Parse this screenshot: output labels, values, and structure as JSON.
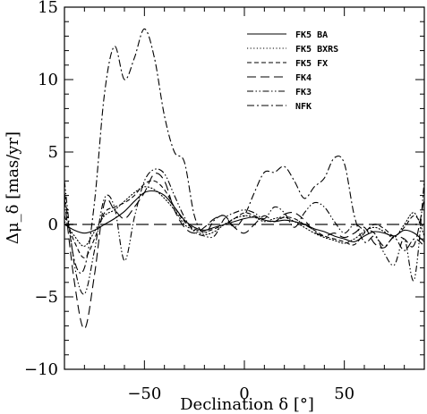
{
  "chart_data": {
    "type": "line",
    "title": "",
    "xlabel": "Declination δ [°]",
    "ylabel": "Δμ_δ [mas/yr]",
    "xlim": [
      -90,
      90
    ],
    "ylim": [
      -10,
      15
    ],
    "xticks": [
      -50,
      0,
      50
    ],
    "yticks": [
      -10,
      -5,
      0,
      5,
      10,
      15
    ],
    "xtick_labels": [
      "−50",
      "0",
      "50"
    ],
    "ytick_labels": [
      "−10",
      "−5",
      "0",
      "5",
      "10",
      "15"
    ],
    "grid": false,
    "legend_position": "top-right",
    "reference_line": {
      "y": 0,
      "style": "long-dash",
      "color": "#555555"
    },
    "series": [
      {
        "name": "FK5 BA",
        "dash": "solid",
        "x": [
          -90,
          -85,
          -80,
          -75,
          -70,
          -65,
          -60,
          -55,
          -50,
          -45,
          -40,
          -35,
          -30,
          -25,
          -20,
          -15,
          -10,
          -5,
          0,
          5,
          10,
          15,
          20,
          25,
          30,
          35,
          40,
          45,
          50,
          55,
          60,
          65,
          70,
          75,
          80,
          85,
          90
        ],
        "y": [
          0.0,
          -0.4,
          -0.6,
          -0.4,
          0.0,
          0.4,
          0.9,
          1.6,
          2.2,
          2.3,
          2.0,
          1.2,
          0.3,
          -0.2,
          -0.4,
          -0.2,
          0.0,
          0.2,
          0.4,
          0.5,
          0.3,
          0.2,
          0.3,
          0.2,
          0.0,
          -0.3,
          -0.5,
          -0.8,
          -1.0,
          -1.2,
          -0.8,
          -0.5,
          -0.6,
          -0.8,
          -0.4,
          -0.6,
          -1.2
        ]
      },
      {
        "name": "FK5 BXRS",
        "dash": "dotted",
        "x": [
          -90,
          -85,
          -80,
          -75,
          -70,
          -65,
          -60,
          -55,
          -50,
          -45,
          -40,
          -35,
          -30,
          -25,
          -20,
          -15,
          -10,
          -5,
          0,
          5,
          10,
          15,
          20,
          25,
          30,
          35,
          40,
          45,
          50,
          55,
          60,
          65,
          70,
          75,
          80,
          85,
          90
        ],
        "y": [
          0.2,
          -0.8,
          -1.5,
          -0.5,
          0.6,
          1.0,
          1.6,
          2.2,
          2.6,
          2.4,
          1.8,
          1.0,
          0.0,
          -0.4,
          -0.7,
          -0.5,
          0.0,
          0.4,
          0.6,
          0.5,
          0.2,
          0.4,
          0.5,
          0.2,
          -0.2,
          -0.6,
          -0.9,
          -1.1,
          -1.3,
          -1.0,
          -0.5,
          -0.2,
          -0.5,
          -0.9,
          0.0,
          0.8,
          -0.8
        ]
      },
      {
        "name": "FK5 FX",
        "dash": "short-dash",
        "x": [
          -90,
          -85,
          -80,
          -75,
          -70,
          -65,
          -60,
          -55,
          -50,
          -45,
          -40,
          -35,
          -30,
          -25,
          -20,
          -15,
          -10,
          -5,
          0,
          5,
          10,
          15,
          20,
          25,
          30,
          35,
          40,
          45,
          50,
          55,
          60,
          65,
          70,
          75,
          80,
          85,
          90
        ],
        "y": [
          0.6,
          -1.2,
          -2.3,
          -1.0,
          0.8,
          1.2,
          1.5,
          2.0,
          2.8,
          3.0,
          2.4,
          1.2,
          0.2,
          -0.3,
          -0.5,
          -0.3,
          0.0,
          0.4,
          0.8,
          0.6,
          0.3,
          0.2,
          0.5,
          0.4,
          0.0,
          -0.4,
          -0.8,
          -1.0,
          -1.2,
          -1.4,
          -0.6,
          0.0,
          -0.3,
          -0.8,
          -0.2,
          0.6,
          -0.3
        ]
      },
      {
        "name": "FK4",
        "dash": "long-dash",
        "x": [
          -90,
          -85,
          -80,
          -75,
          -70,
          -65,
          -60,
          -55,
          -50,
          -45,
          -40,
          -35,
          -30,
          -25,
          -20,
          -15,
          -10,
          -5,
          0,
          5,
          10,
          15,
          20,
          25,
          30,
          35,
          40,
          45,
          50,
          55,
          60,
          65,
          70,
          75,
          80,
          85,
          90
        ],
        "y": [
          1.8,
          -4.0,
          -7.2,
          -3.5,
          1.5,
          1.0,
          0.4,
          1.2,
          2.2,
          3.5,
          3.0,
          1.0,
          -0.2,
          -0.6,
          -0.2,
          0.4,
          0.6,
          -0.2,
          -0.6,
          0.0,
          0.6,
          0.2,
          0.7,
          0.8,
          0.3,
          -0.5,
          -0.8,
          -0.6,
          -0.9,
          -0.6,
          -0.2,
          -1.3,
          -1.6,
          -0.8,
          -1.0,
          -1.4,
          1.8
        ]
      },
      {
        "name": "FK3",
        "dash": "dash-dot-dot",
        "x": [
          -90,
          -85,
          -80,
          -75,
          -70,
          -65,
          -60,
          -55,
          -50,
          -45,
          -40,
          -35,
          -30,
          -25,
          -20,
          -15,
          -10,
          -5,
          0,
          5,
          10,
          15,
          20,
          25,
          30,
          35,
          40,
          45,
          50,
          55,
          60,
          65,
          70,
          75,
          80,
          85,
          90
        ],
        "y": [
          3.0,
          -2.8,
          -4.8,
          -1.8,
          1.8,
          1.2,
          -2.5,
          0.5,
          3.0,
          3.8,
          3.5,
          2.0,
          0.5,
          -0.5,
          -0.8,
          -0.8,
          0.4,
          0.8,
          1.0,
          0.8,
          0.4,
          1.2,
          0.8,
          -0.2,
          0.8,
          1.5,
          1.2,
          0.2,
          -0.6,
          0.0,
          -0.4,
          -0.6,
          -2.0,
          -2.8,
          -1.0,
          -3.8,
          3.0
        ]
      },
      {
        "name": "NFK",
        "dash": "dash-dot",
        "x": [
          -90,
          -85,
          -80,
          -75,
          -70,
          -65,
          -60,
          -55,
          -50,
          -45,
          -40,
          -35,
          -30,
          -25,
          -20,
          -15,
          -10,
          -5,
          0,
          5,
          10,
          15,
          20,
          25,
          30,
          35,
          40,
          45,
          50,
          55,
          60,
          65,
          70,
          75,
          80,
          85,
          90
        ],
        "y": [
          2.2,
          -2.5,
          -3.0,
          1.5,
          9.0,
          12.3,
          10.0,
          11.5,
          13.5,
          11.5,
          7.5,
          5.0,
          4.3,
          0.6,
          -0.6,
          0.3,
          0.6,
          -0.2,
          0.6,
          2.2,
          3.6,
          3.6,
          4.0,
          3.0,
          1.8,
          2.6,
          3.2,
          4.6,
          4.2,
          0.6,
          -1.2,
          -0.8,
          -1.5,
          -0.9,
          -1.8,
          -1.0,
          -1.5
        ]
      }
    ]
  }
}
